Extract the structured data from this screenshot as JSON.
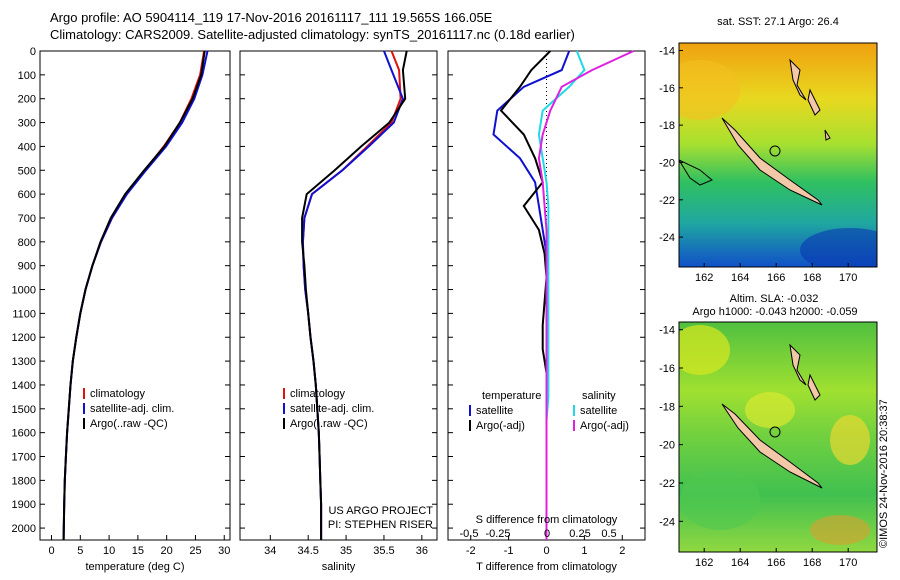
{
  "header": {
    "line1": "Argo profile: AO 5904114_119 17-Nov-2016 20161117_111 19.565S 166.05E",
    "line2": "Climatology: CARS2009. Satellite-adjusted climatology: synTS_20161117.nc (0.18d earlier)"
  },
  "colors": {
    "climatology": "#e01010",
    "satellite": "#1010d0",
    "argo": "#000000",
    "sal_satellite": "#20d8e8",
    "sal_argo": "#e020e0"
  },
  "chart_data": [
    {
      "type": "line",
      "xlabel": "temperature (deg C)",
      "xlim": [
        -2,
        31
      ],
      "xticks": [
        "0",
        "5",
        "10",
        "15",
        "20",
        "25",
        "30"
      ],
      "ylim": [
        0,
        2050
      ],
      "yticks": [
        "0",
        "100",
        "200",
        "300",
        "400",
        "500",
        "600",
        "700",
        "800",
        "900",
        "1000",
        "1100",
        "1200",
        "1300",
        "1400",
        "1500",
        "1600",
        "1700",
        "1800",
        "1900",
        "2000"
      ],
      "legend": [
        "climatology",
        "satellite-adj. clim.",
        "Argo(..raw -QC)"
      ],
      "series": [
        {
          "name": "climatology",
          "x": [
            26.5,
            25.8,
            24.3,
            22.3,
            19.5,
            16.2,
            13.0,
            10.5,
            8.6,
            7.1,
            5.9,
            5.0,
            4.3,
            3.7,
            3.3,
            3.0,
            2.7,
            2.5,
            2.3,
            2.2,
            2.1
          ],
          "y": [
            0,
            100,
            200,
            300,
            400,
            500,
            600,
            700,
            800,
            900,
            1000,
            1100,
            1200,
            1300,
            1400,
            1500,
            1600,
            1700,
            1800,
            1900,
            2050
          ]
        },
        {
          "name": "satellite-adj. clim.",
          "x": [
            27.1,
            26.2,
            24.8,
            22.7,
            19.9,
            16.4,
            13.1,
            10.5,
            8.6,
            7.1,
            5.9,
            5.0,
            4.3,
            3.7,
            3.3,
            3.0,
            2.7,
            2.5,
            2.3,
            2.2,
            2.1
          ],
          "y": [
            0,
            100,
            200,
            300,
            400,
            500,
            600,
            700,
            800,
            900,
            1000,
            1100,
            1200,
            1300,
            1400,
            1500,
            1600,
            1700,
            1800,
            1900,
            2050
          ]
        },
        {
          "name": "Argo(..raw -QC)",
          "x": [
            26.6,
            26.0,
            24.5,
            22.3,
            19.6,
            16.1,
            12.8,
            10.3,
            8.5,
            7.1,
            5.9,
            5.0,
            4.3,
            3.7,
            3.3,
            3.0,
            2.7,
            2.5,
            2.3,
            2.2,
            2.1
          ],
          "y": [
            0,
            100,
            200,
            300,
            400,
            500,
            600,
            700,
            800,
            900,
            1000,
            1100,
            1200,
            1300,
            1400,
            1500,
            1600,
            1700,
            1800,
            1900,
            2050
          ]
        }
      ]
    },
    {
      "type": "line",
      "xlabel": "salinity",
      "xlim": [
        33.6,
        36.2
      ],
      "xticks": [
        "34",
        "34.5",
        "35",
        "35.5",
        "36"
      ],
      "ylim": [
        0,
        2050
      ],
      "legend": [
        "climatology",
        "satellite-adj. clim.",
        "Argo(..raw -QC)"
      ],
      "annotation": [
        "US ARGO PROJECT",
        "PI: STEPHEN RISER"
      ],
      "series": [
        {
          "name": "climatology",
          "x": [
            35.6,
            35.7,
            35.72,
            35.6,
            35.28,
            34.95,
            34.55,
            34.45,
            34.43,
            34.44,
            34.46,
            34.5,
            34.53,
            34.57,
            34.6,
            34.62,
            34.64,
            34.65,
            34.66,
            34.67,
            34.67
          ],
          "y": [
            0,
            80,
            200,
            300,
            400,
            500,
            600,
            700,
            800,
            900,
            1000,
            1100,
            1200,
            1300,
            1400,
            1500,
            1600,
            1700,
            1800,
            1900,
            2050
          ]
        },
        {
          "name": "satellite-adj. clim.",
          "x": [
            35.5,
            35.6,
            35.75,
            35.63,
            35.3,
            34.95,
            34.55,
            34.45,
            34.43,
            34.44,
            34.46,
            34.5,
            34.53,
            34.57,
            34.6,
            34.62,
            34.64,
            34.65,
            34.66,
            34.67,
            34.67
          ],
          "y": [
            0,
            80,
            200,
            300,
            400,
            500,
            600,
            700,
            800,
            900,
            1000,
            1100,
            1200,
            1300,
            1400,
            1500,
            1600,
            1700,
            1800,
            1900,
            2050
          ]
        },
        {
          "name": "Argo(..raw -QC)",
          "x": [
            35.8,
            35.75,
            35.78,
            35.57,
            35.2,
            34.85,
            34.48,
            34.42,
            34.42,
            34.45,
            34.47,
            34.5,
            34.53,
            34.57,
            34.6,
            34.62,
            34.64,
            34.65,
            34.66,
            34.67,
            34.67
          ],
          "y": [
            0,
            80,
            200,
            300,
            400,
            500,
            600,
            700,
            800,
            900,
            1000,
            1100,
            1200,
            1300,
            1400,
            1500,
            1600,
            1700,
            1800,
            1900,
            2050
          ]
        }
      ]
    },
    {
      "type": "line",
      "xlabel": "T difference from climatology",
      "x2label": "S difference from climatology",
      "xlim": [
        -2.6,
        2.6
      ],
      "xticks": [
        "-2",
        "-1",
        "0",
        "1",
        "2"
      ],
      "x2ticks": [
        "-0.5",
        "-0.25",
        "0",
        "0.25",
        "0.5"
      ],
      "ylim": [
        0,
        2050
      ],
      "legend_temperature": [
        "temperature",
        "satellite",
        "Argo(-adj)"
      ],
      "legend_salinity": [
        "salinity",
        "satellite",
        "Argo(-adj)"
      ],
      "series": [
        {
          "name": "temperature satellite",
          "x": [
            0.6,
            0.4,
            -0.6,
            -1.3,
            -1.4,
            -0.7,
            -0.3,
            -0.2,
            -0.1,
            0,
            0,
            0,
            0,
            0,
            0,
            0,
            0,
            0,
            0,
            0,
            0
          ],
          "y": [
            0,
            80,
            150,
            250,
            350,
            450,
            550,
            650,
            750,
            850,
            950,
            1050,
            1150,
            1250,
            1350,
            1450,
            1550,
            1700,
            1800,
            1900,
            2050
          ]
        },
        {
          "name": "temperature Argo(-adj)",
          "x": [
            0.1,
            -0.4,
            -0.7,
            -1.2,
            -0.6,
            -0.3,
            -0.1,
            -0.6,
            -0.2,
            -0.05,
            0,
            -0.05,
            -0.1,
            -0.1,
            0,
            0,
            0,
            0,
            0,
            0,
            0
          ],
          "y": [
            0,
            80,
            150,
            250,
            350,
            450,
            550,
            650,
            750,
            850,
            950,
            1050,
            1150,
            1250,
            1350,
            1450,
            1550,
            1700,
            1800,
            1900,
            2050
          ]
        },
        {
          "name": "salinity satellite",
          "x": [
            0.8,
            1.0,
            0.6,
            -0.1,
            -0.2,
            -0.1,
            0,
            0.05,
            0.05,
            0.05,
            0.05,
            0.05,
            0.05,
            0.05,
            0.05,
            0.05,
            0,
            0,
            0,
            0,
            0
          ],
          "y": [
            0,
            80,
            150,
            250,
            350,
            450,
            550,
            650,
            750,
            850,
            950,
            1050,
            1150,
            1250,
            1350,
            1450,
            1550,
            1700,
            1800,
            1900,
            2050
          ]
        },
        {
          "name": "salinity Argo(-adj)",
          "x": [
            2.3,
            1.2,
            0.4,
            0.1,
            -0.1,
            -0.2,
            -0.1,
            -0.05,
            0,
            0,
            0,
            0,
            0,
            0,
            0,
            0,
            0,
            0,
            0,
            0,
            0
          ],
          "y": [
            0,
            80,
            150,
            250,
            350,
            450,
            550,
            650,
            750,
            850,
            950,
            1050,
            1150,
            1250,
            1350,
            1450,
            1550,
            1700,
            1800,
            1900,
            2050
          ]
        }
      ]
    },
    {
      "type": "heatmap",
      "title": "sat. SST: 27.1  Argo: 26.4",
      "xlim": [
        160.6,
        171.6
      ],
      "ylim": [
        -25.6,
        -13.6
      ],
      "xticks": [
        "162",
        "164",
        "166",
        "168",
        "170"
      ],
      "yticks": [
        "-14",
        "-16",
        "-18",
        "-20",
        "-22",
        "-24"
      ]
    },
    {
      "type": "heatmap",
      "title": "Altim. SLA: -0.032",
      "subtitle": "Argo h1000: -0.043 h2000: -0.059",
      "xlim": [
        160.6,
        171.6
      ],
      "ylim": [
        -25.6,
        -13.6
      ],
      "xticks": [
        "162",
        "164",
        "166",
        "168",
        "170"
      ],
      "yticks": [
        "-14",
        "-16",
        "-18",
        "-20",
        "-22",
        "-24"
      ]
    }
  ],
  "stamp": "©IMOS 24-Nov-2016 20:38:37"
}
